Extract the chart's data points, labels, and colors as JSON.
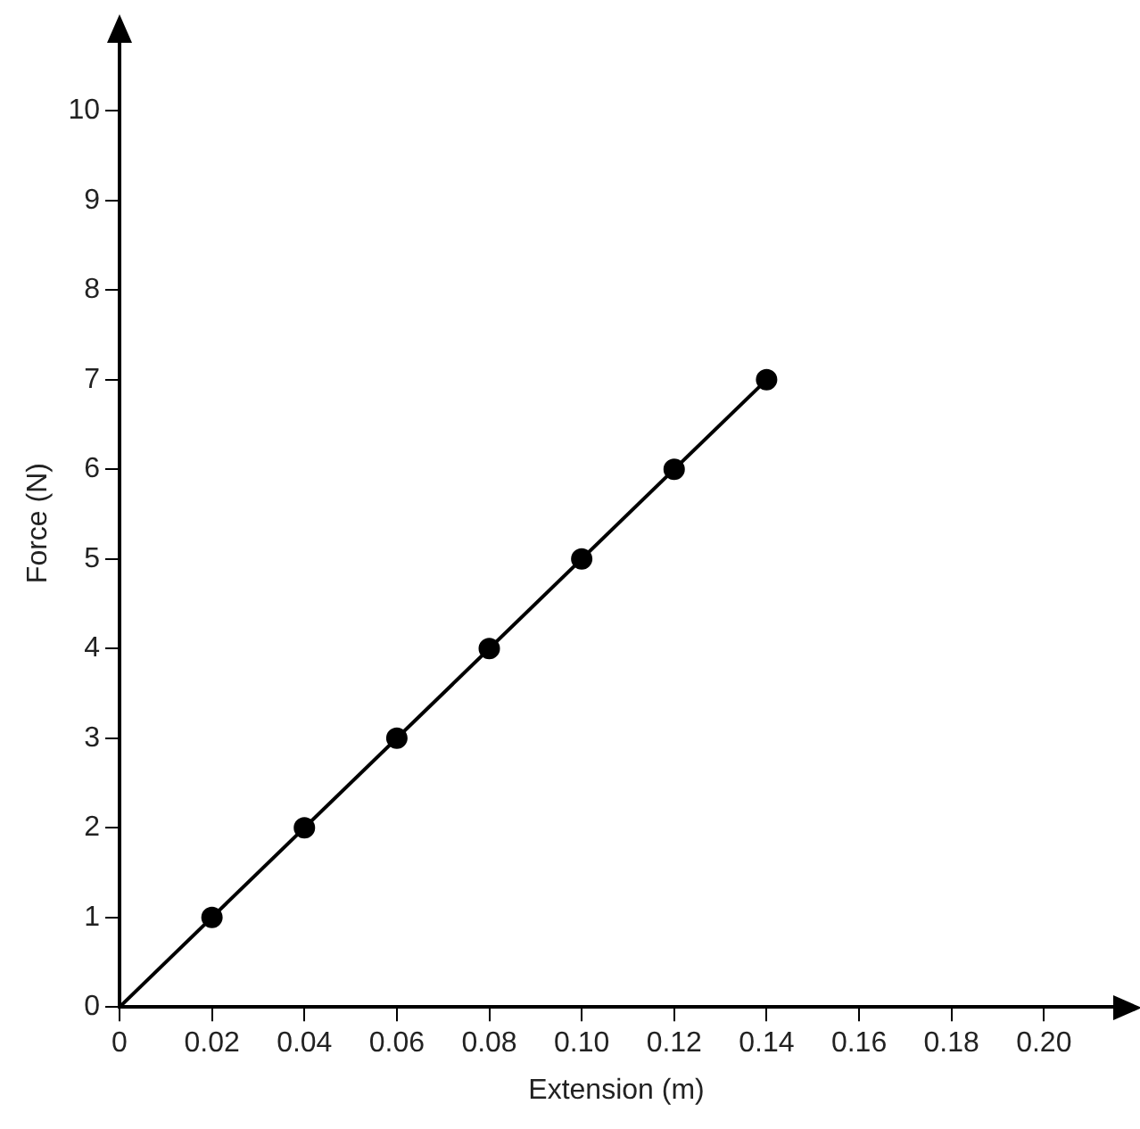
{
  "chart_data": {
    "type": "scatter",
    "xlabel": "Extension (m)",
    "ylabel": "Force (N)",
    "series": [
      {
        "type": "line",
        "marker": "none",
        "color": "#000000",
        "x": [
          0,
          0.14
        ],
        "values": [
          0,
          7
        ]
      },
      {
        "marker": "circle",
        "color": "#000000",
        "x": [
          0.02,
          0.04,
          0.06,
          0.08,
          0.1,
          0.12,
          0.14
        ],
        "values": [
          1,
          2,
          3,
          4,
          5,
          6,
          7
        ]
      }
    ],
    "xlim": [
      0,
      0.215
    ],
    "xticks": [
      0,
      0.02,
      0.04,
      0.06,
      0.08,
      {
        "value": 0.1,
        "label": "0.10"
      },
      0.12,
      0.14,
      0.16,
      0.18,
      {
        "value": 0.2,
        "label": "0.20"
      }
    ],
    "ylim": [
      0,
      10.8
    ],
    "yticks": [
      0,
      1,
      2,
      3,
      4,
      5,
      6,
      7,
      8,
      9,
      10
    ]
  }
}
